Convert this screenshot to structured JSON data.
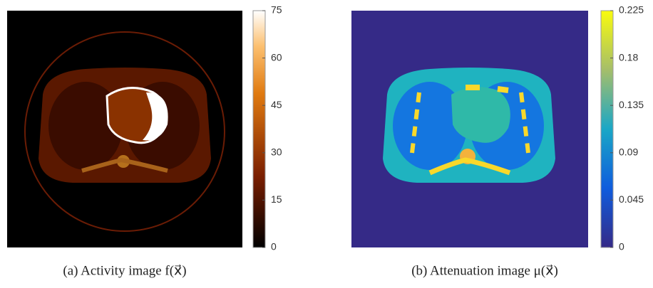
{
  "panels": [
    {
      "caption": "(a) Activity image f(x⃗)",
      "colorbar": {
        "range": [
          0,
          75
        ],
        "ticks": [
          0,
          15,
          30,
          45,
          60,
          75
        ]
      }
    },
    {
      "caption": "(b) Attenuation image μ(x⃗)",
      "colorbar": {
        "range": [
          0,
          0.225
        ],
        "ticks": [
          0,
          0.045,
          0.09,
          0.135,
          0.18,
          0.225
        ]
      }
    }
  ]
}
